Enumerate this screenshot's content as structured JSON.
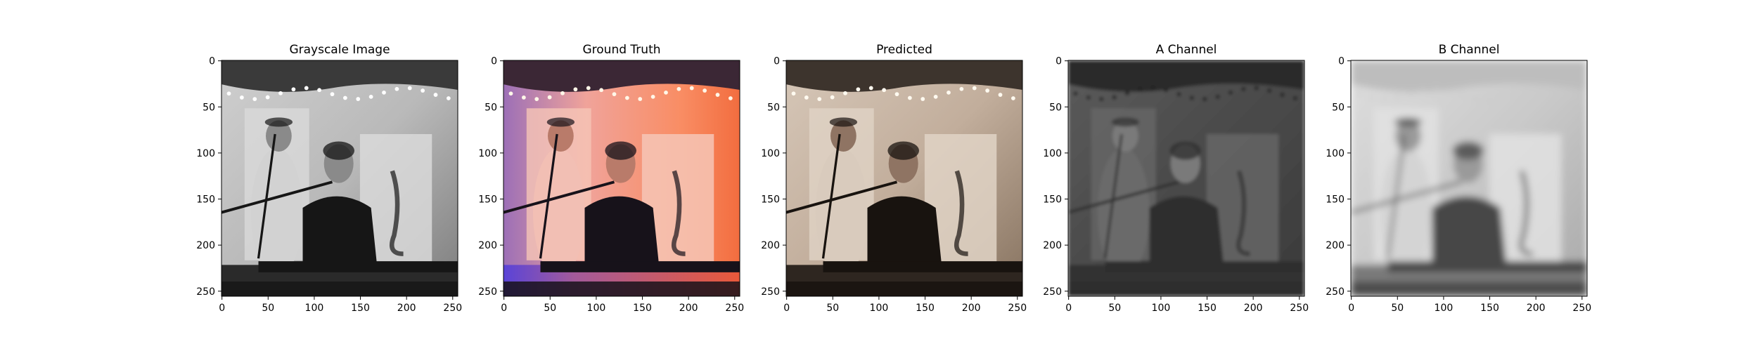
{
  "figure": {
    "background": "#ffffff",
    "panel_titles": [
      "Grayscale Image",
      "Ground Truth",
      "Predicted",
      "A Channel",
      "B Channel"
    ]
  },
  "chart_data": [
    {
      "type": "image",
      "title": "Grayscale Image",
      "content": "grayscale photo of a man in a cap with a microphone behind a bearded man at a keyboard, string lights overhead",
      "colormap": "gray",
      "xlim": [
        0,
        256
      ],
      "ylim": [
        256,
        0
      ],
      "xticks": [
        0,
        50,
        100,
        150,
        200,
        250
      ],
      "yticks": [
        0,
        50,
        100,
        150,
        200,
        250
      ],
      "xlabel": "",
      "ylabel": ""
    },
    {
      "type": "image",
      "title": "Ground Truth",
      "content": "same scene in color with warm orange/red stage lighting on the right and purple/blue light at lower left",
      "colormap": "rgb",
      "xlim": [
        0,
        256
      ],
      "ylim": [
        256,
        0
      ],
      "xticks": [
        0,
        50,
        100,
        150,
        200,
        250
      ],
      "yticks": [
        0,
        50,
        100,
        150,
        200,
        250
      ],
      "xlabel": "",
      "ylabel": ""
    },
    {
      "type": "image",
      "title": "Predicted",
      "content": "same scene colorized with muted brown/beige tones",
      "colormap": "rgb",
      "xlim": [
        0,
        256
      ],
      "ylim": [
        256,
        0
      ],
      "xticks": [
        0,
        50,
        100,
        150,
        200,
        250
      ],
      "yticks": [
        0,
        50,
        100,
        150,
        200,
        250
      ],
      "xlabel": "",
      "ylabel": ""
    },
    {
      "type": "image",
      "title": "A Channel",
      "content": "dark grayscale blurry map of the predicted A color channel",
      "colormap": "gray",
      "xlim": [
        0,
        256
      ],
      "ylim": [
        256,
        0
      ],
      "xticks": [
        0,
        50,
        100,
        150,
        200,
        250
      ],
      "yticks": [
        0,
        50,
        100,
        150,
        200,
        250
      ],
      "xlabel": "",
      "ylabel": ""
    },
    {
      "type": "image",
      "title": "B Channel",
      "content": "light grayscale blurry map of the predicted B color channel",
      "colormap": "gray",
      "xlim": [
        0,
        256
      ],
      "ylim": [
        256,
        0
      ],
      "xticks": [
        0,
        50,
        100,
        150,
        200,
        250
      ],
      "yticks": [
        0,
        50,
        100,
        150,
        200,
        250
      ],
      "xlabel": "",
      "ylabel": ""
    }
  ]
}
